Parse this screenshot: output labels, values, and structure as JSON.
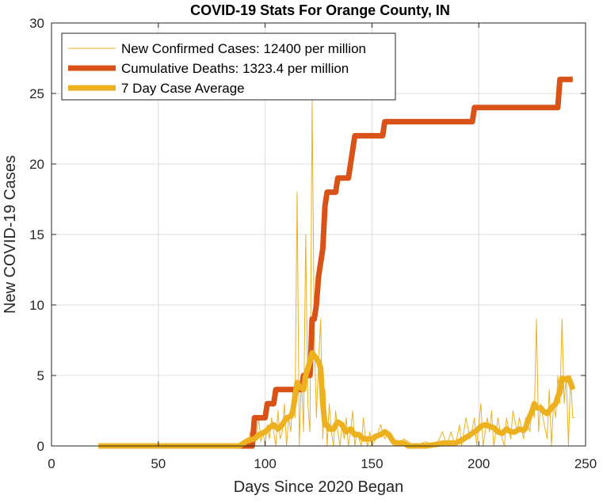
{
  "chart_data": {
    "type": "line",
    "title": "COVID-19 Stats For Orange County, IN",
    "xlabel": "Days Since 2020 Began",
    "ylabel": "New COVID-19 Cases",
    "xlim": [
      0,
      250
    ],
    "ylim": [
      0,
      30
    ],
    "xticks": [
      0,
      50,
      100,
      150,
      200,
      250
    ],
    "yticks": [
      0,
      5,
      10,
      15,
      20,
      25,
      30
    ],
    "grid": true,
    "legend_position": "top-left",
    "series": [
      {
        "name": "New Confirmed Cases: 12400 per million",
        "color": "#EDB120",
        "style": "thin",
        "points": [
          [
            22,
            0
          ],
          [
            90,
            0
          ],
          [
            91,
            0.2
          ],
          [
            92,
            0
          ],
          [
            93,
            1
          ],
          [
            94,
            0
          ],
          [
            95,
            0.5
          ],
          [
            96,
            1
          ],
          [
            97,
            2
          ],
          [
            98,
            0.3
          ],
          [
            99,
            1
          ],
          [
            100,
            0
          ],
          [
            101,
            1.5
          ],
          [
            102,
            0.5
          ],
          [
            103,
            2
          ],
          [
            104,
            1
          ],
          [
            105,
            0
          ],
          [
            106,
            2.5
          ],
          [
            107,
            0.5
          ],
          [
            108,
            1
          ],
          [
            109,
            3
          ],
          [
            110,
            0
          ],
          [
            111,
            2
          ],
          [
            112,
            1
          ],
          [
            113,
            4
          ],
          [
            114,
            2
          ],
          [
            115,
            18
          ],
          [
            116,
            0
          ],
          [
            117,
            5
          ],
          [
            118,
            1
          ],
          [
            119,
            15
          ],
          [
            120,
            3
          ],
          [
            121,
            1
          ],
          [
            122,
            24.5
          ],
          [
            123,
            8
          ],
          [
            124,
            2
          ],
          [
            125,
            6
          ],
          [
            126,
            9
          ],
          [
            127,
            0.5
          ],
          [
            128,
            4
          ],
          [
            129,
            0
          ],
          [
            130,
            3
          ],
          [
            131,
            1
          ],
          [
            132,
            0
          ],
          [
            133,
            2.5
          ],
          [
            134,
            1
          ],
          [
            135,
            0
          ],
          [
            136,
            1.5
          ],
          [
            137,
            0.5
          ],
          [
            138,
            2
          ],
          [
            139,
            0
          ],
          [
            140,
            1
          ],
          [
            141,
            2.5
          ],
          [
            142,
            0
          ],
          [
            143,
            1
          ],
          [
            144,
            0.5
          ],
          [
            145,
            0
          ],
          [
            146,
            2
          ],
          [
            147,
            0.5
          ],
          [
            148,
            0
          ],
          [
            149,
            1
          ],
          [
            150,
            0
          ],
          [
            152,
            0.5
          ],
          [
            154,
            1.5
          ],
          [
            156,
            0.5
          ],
          [
            158,
            1
          ],
          [
            160,
            0
          ],
          [
            165,
            0.5
          ],
          [
            170,
            0
          ],
          [
            175,
            0.3
          ],
          [
            180,
            0
          ],
          [
            183,
            1
          ],
          [
            185,
            0
          ],
          [
            187,
            1
          ],
          [
            189,
            0
          ],
          [
            191,
            1.5
          ],
          [
            192,
            0
          ],
          [
            194,
            2
          ],
          [
            196,
            0.5
          ],
          [
            198,
            2
          ],
          [
            199,
            0
          ],
          [
            201,
            3
          ],
          [
            202,
            0
          ],
          [
            204,
            2
          ],
          [
            205,
            1
          ],
          [
            206,
            2.5
          ],
          [
            207,
            0
          ],
          [
            209,
            2
          ],
          [
            210,
            1
          ],
          [
            212,
            0
          ],
          [
            213,
            2
          ],
          [
            215,
            0.5
          ],
          [
            216,
            2.5
          ],
          [
            218,
            1
          ],
          [
            219,
            2
          ],
          [
            221,
            0.5
          ],
          [
            222,
            2
          ],
          [
            224,
            1
          ],
          [
            225,
            3
          ],
          [
            226,
            2
          ],
          [
            227,
            9
          ],
          [
            228,
            1
          ],
          [
            229,
            3
          ],
          [
            230,
            2
          ],
          [
            232,
            0.5
          ],
          [
            233,
            4
          ],
          [
            234,
            0
          ],
          [
            235,
            3
          ],
          [
            236,
            2
          ],
          [
            237,
            5
          ],
          [
            238,
            3
          ],
          [
            239,
            9
          ],
          [
            240,
            3
          ],
          [
            241,
            5
          ],
          [
            242,
            0
          ],
          [
            243,
            5
          ],
          [
            244,
            2
          ],
          [
            245,
            2
          ]
        ]
      },
      {
        "name": "Cumulative Deaths: 1323.4 per million",
        "color": "#D95319",
        "style": "thick",
        "points": [
          [
            22,
            0
          ],
          [
            86,
            0
          ],
          [
            92,
            0
          ],
          [
            94,
            0
          ],
          [
            95,
            2
          ],
          [
            100,
            2
          ],
          [
            101,
            3
          ],
          [
            104,
            3
          ],
          [
            105,
            4
          ],
          [
            117,
            4
          ],
          [
            118,
            5
          ],
          [
            121,
            5
          ],
          [
            122,
            9
          ],
          [
            123,
            9
          ],
          [
            124,
            10
          ],
          [
            125,
            12
          ],
          [
            126,
            13
          ],
          [
            127,
            14
          ],
          [
            128,
            17
          ],
          [
            129,
            18
          ],
          [
            133,
            18
          ],
          [
            134,
            19
          ],
          [
            139,
            19
          ],
          [
            140,
            20
          ],
          [
            141,
            21
          ],
          [
            142,
            22
          ],
          [
            155,
            22
          ],
          [
            156,
            23
          ],
          [
            197,
            23
          ],
          [
            198,
            24
          ],
          [
            237,
            24
          ],
          [
            238,
            26
          ],
          [
            244,
            26
          ]
        ]
      },
      {
        "name": "7 Day Case Average",
        "color": "#EDB120",
        "style": "thick",
        "points": [
          [
            22,
            0
          ],
          [
            88,
            0
          ],
          [
            90,
            0.2
          ],
          [
            92,
            0.4
          ],
          [
            95,
            0.5
          ],
          [
            97,
            0.8
          ],
          [
            100,
            1
          ],
          [
            102,
            1.3
          ],
          [
            104,
            1.5
          ],
          [
            106,
            1.2
          ],
          [
            108,
            1.5
          ],
          [
            110,
            2
          ],
          [
            112,
            2.1
          ],
          [
            113,
            2.5
          ],
          [
            115,
            4.5
          ],
          [
            116,
            4.2
          ],
          [
            118,
            4
          ],
          [
            119,
            5
          ],
          [
            121,
            6
          ],
          [
            122,
            6.6
          ],
          [
            124,
            6.2
          ],
          [
            125,
            6
          ],
          [
            126,
            5.5
          ],
          [
            127,
            3
          ],
          [
            128,
            1.5
          ],
          [
            129,
            1.5
          ],
          [
            130,
            1.2
          ],
          [
            132,
            1.2
          ],
          [
            133,
            1.5
          ],
          [
            134,
            1.7
          ],
          [
            136,
            1.5
          ],
          [
            137,
            1.2
          ],
          [
            138,
            1
          ],
          [
            140,
            1.2
          ],
          [
            141,
            1
          ],
          [
            142,
            0.8
          ],
          [
            144,
            0.8
          ],
          [
            146,
            0.5
          ],
          [
            148,
            0.5
          ],
          [
            150,
            0.5
          ],
          [
            152,
            0.7
          ],
          [
            154,
            0.8
          ],
          [
            156,
            1
          ],
          [
            158,
            0.8
          ],
          [
            160,
            0.3
          ],
          [
            162,
            0.2
          ],
          [
            165,
            0.2
          ],
          [
            167,
            0
          ],
          [
            170,
            0
          ],
          [
            175,
            0
          ],
          [
            180,
            0.1
          ],
          [
            183,
            0.2
          ],
          [
            186,
            0.2
          ],
          [
            189,
            0.2
          ],
          [
            192,
            0.4
          ],
          [
            195,
            0.7
          ],
          [
            197,
            0.9
          ],
          [
            199,
            1.1
          ],
          [
            201,
            1.4
          ],
          [
            203,
            1.5
          ],
          [
            205,
            1.4
          ],
          [
            207,
            1.3
          ],
          [
            209,
            1
          ],
          [
            211,
            0.9
          ],
          [
            213,
            1.2
          ],
          [
            215,
            1
          ],
          [
            217,
            1
          ],
          [
            219,
            1.2
          ],
          [
            221,
            1.1
          ],
          [
            222,
            1.3
          ],
          [
            223,
            1.8
          ],
          [
            225,
            2.5
          ],
          [
            226,
            3
          ],
          [
            227,
            2.7
          ],
          [
            229,
            2.7
          ],
          [
            230,
            2.5
          ],
          [
            232,
            2.3
          ],
          [
            234,
            2.7
          ],
          [
            236,
            3
          ],
          [
            237,
            3.5
          ],
          [
            238,
            3.8
          ],
          [
            239,
            4.8
          ],
          [
            241,
            4.7
          ],
          [
            242,
            4.8
          ],
          [
            243,
            4.5
          ],
          [
            244,
            4
          ]
        ]
      }
    ]
  }
}
